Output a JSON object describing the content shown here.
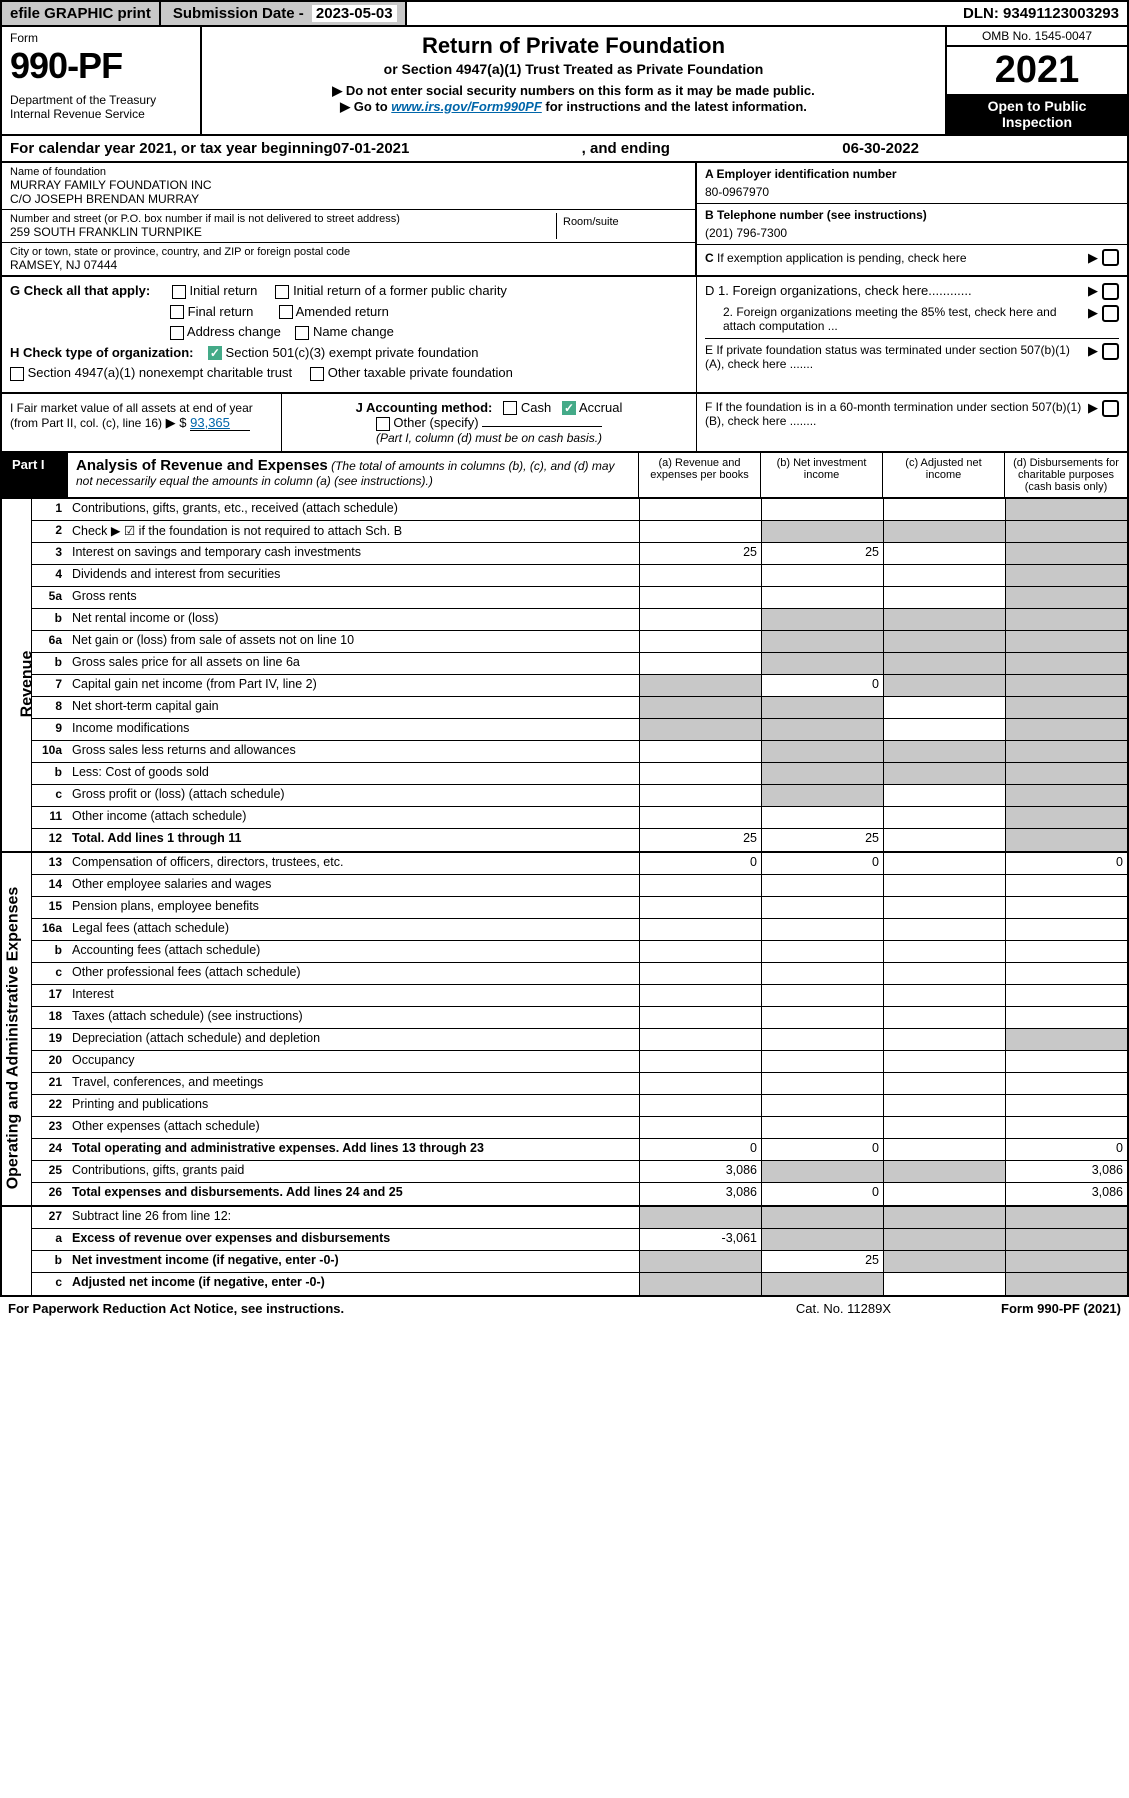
{
  "topbar": {
    "efile": "efile GRAPHIC print",
    "sub_label": "Submission Date - ",
    "sub_date": "2023-05-03",
    "dln": "DLN: 93491123003293"
  },
  "header": {
    "form": "Form",
    "num": "990-PF",
    "dept": "Department of the Treasury\nInternal Revenue Service",
    "title": "Return of Private Foundation",
    "subtitle": "or Section 4947(a)(1) Trust Treated as Private Foundation",
    "note1": "▶ Do not enter social security numbers on this form as it may be made public.",
    "note2_pre": "▶ Go to ",
    "note2_link": "www.irs.gov/Form990PF",
    "note2_post": " for instructions and the latest information.",
    "omb": "OMB No. 1545-0047",
    "year": "2021",
    "open": "Open to Public Inspection"
  },
  "cal": {
    "pre": "For calendar year 2021, or tax year beginning ",
    "begin": "07-01-2021",
    "mid": ", and ending ",
    "end": "06-30-2022"
  },
  "entity": {
    "name_lbl": "Name of foundation",
    "name_val": "MURRAY FAMILY FOUNDATION INC\nC/O JOSEPH BRENDAN MURRAY",
    "addr_lbl": "Number and street (or P.O. box number if mail is not delivered to street address)",
    "addr_val": "259 SOUTH FRANKLIN TURNPIKE",
    "room_lbl": "Room/suite",
    "city_lbl": "City or town, state or province, country, and ZIP or foreign postal code",
    "city_val": "RAMSEY, NJ  07444",
    "a_lbl": "A Employer identification number",
    "a_val": "80-0967970",
    "b_lbl": "B Telephone number (see instructions)",
    "b_val": "(201) 796-7300",
    "c_lbl": "C If exemption application is pending, check here"
  },
  "g": {
    "label": "G Check all that apply:",
    "opts": [
      "Initial return",
      "Initial return of a former public charity",
      "Final return",
      "Amended return",
      "Address change",
      "Name change"
    ]
  },
  "h": {
    "label": "H Check type of organization:",
    "opt1": "Section 501(c)(3) exempt private foundation",
    "opt2": "Section 4947(a)(1) nonexempt charitable trust",
    "opt3": "Other taxable private foundation"
  },
  "d": {
    "d1": "D 1. Foreign organizations, check here............",
    "d2": "2. Foreign organizations meeting the 85% test, check here and attach computation ...",
    "e": "E  If private foundation status was terminated under section 507(b)(1)(A), check here .......",
    "f": "F  If the foundation is in a 60-month termination under section 507(b)(1)(B), check here ........"
  },
  "i": {
    "label": "I Fair market value of all assets at end of year (from Part II, col. (c), line 16)",
    "val": "93,365"
  },
  "j": {
    "label": "J Accounting method:",
    "cash": "Cash",
    "accrual": "Accrual",
    "other": "Other (specify)",
    "note": "(Part I, column (d) must be on cash basis.)"
  },
  "part1": {
    "tag": "Part I",
    "title": "Analysis of Revenue and Expenses",
    "note": " (The total of amounts in columns (b), (c), and (d) may not necessarily equal the amounts in column (a) (see instructions).)",
    "cols": {
      "a": "(a) Revenue and expenses per books",
      "b": "(b) Net investment income",
      "c": "(c) Adjusted net income",
      "d": "(d) Disbursements for charitable purposes (cash basis only)"
    }
  },
  "sections": {
    "rev": "Revenue",
    "exp": "Operating and Administrative Expenses"
  },
  "rows": [
    {
      "n": "1",
      "l": "Contributions, gifts, grants, etc., received (attach schedule)",
      "a": "",
      "b": "",
      "c": "",
      "d": "",
      "gd": true
    },
    {
      "n": "2",
      "l": "Check ▶ ☑ if the foundation is not required to attach Sch. B",
      "a": "",
      "b": "",
      "c": "",
      "d": "",
      "full": true,
      "gb": true,
      "gc": true,
      "gd": true
    },
    {
      "n": "3",
      "l": "Interest on savings and temporary cash investments",
      "a": "25",
      "b": "25",
      "c": "",
      "d": "",
      "gd": true
    },
    {
      "n": "4",
      "l": "Dividends and interest from securities",
      "a": "",
      "b": "",
      "c": "",
      "d": "",
      "gd": true
    },
    {
      "n": "5a",
      "l": "Gross rents",
      "a": "",
      "b": "",
      "c": "",
      "d": "",
      "gd": true
    },
    {
      "n": "b",
      "l": "Net rental income or (loss)",
      "a": "",
      "b": "",
      "c": "",
      "d": "",
      "gb": true,
      "gc": true,
      "gd": true
    },
    {
      "n": "6a",
      "l": "Net gain or (loss) from sale of assets not on line 10",
      "a": "",
      "b": "",
      "c": "",
      "d": "",
      "gb": true,
      "gc": true,
      "gd": true
    },
    {
      "n": "b",
      "l": "Gross sales price for all assets on line 6a",
      "a": "",
      "b": "",
      "c": "",
      "d": "",
      "gb": true,
      "gc": true,
      "gd": true
    },
    {
      "n": "7",
      "l": "Capital gain net income (from Part IV, line 2)",
      "a": "",
      "b": "0",
      "c": "",
      "d": "",
      "ga": true,
      "gc": true,
      "gd": true
    },
    {
      "n": "8",
      "l": "Net short-term capital gain",
      "a": "",
      "b": "",
      "c": "",
      "d": "",
      "ga": true,
      "gb": true,
      "gd": true
    },
    {
      "n": "9",
      "l": "Income modifications",
      "a": "",
      "b": "",
      "c": "",
      "d": "",
      "ga": true,
      "gb": true,
      "gd": true
    },
    {
      "n": "10a",
      "l": "Gross sales less returns and allowances",
      "a": "",
      "b": "",
      "c": "",
      "d": "",
      "gb": true,
      "gc": true,
      "gd": true
    },
    {
      "n": "b",
      "l": "Less: Cost of goods sold",
      "a": "",
      "b": "",
      "c": "",
      "d": "",
      "gb": true,
      "gc": true,
      "gd": true
    },
    {
      "n": "c",
      "l": "Gross profit or (loss) (attach schedule)",
      "a": "",
      "b": "",
      "c": "",
      "d": "",
      "gb": true,
      "gd": true
    },
    {
      "n": "11",
      "l": "Other income (attach schedule)",
      "a": "",
      "b": "",
      "c": "",
      "d": "",
      "gd": true
    },
    {
      "n": "12",
      "l": "Total. Add lines 1 through 11",
      "a": "25",
      "b": "25",
      "c": "",
      "d": "",
      "gd": true,
      "bold": true
    }
  ],
  "rows2": [
    {
      "n": "13",
      "l": "Compensation of officers, directors, trustees, etc.",
      "a": "0",
      "b": "0",
      "c": "",
      "d": "0"
    },
    {
      "n": "14",
      "l": "Other employee salaries and wages",
      "a": "",
      "b": "",
      "c": "",
      "d": ""
    },
    {
      "n": "15",
      "l": "Pension plans, employee benefits",
      "a": "",
      "b": "",
      "c": "",
      "d": ""
    },
    {
      "n": "16a",
      "l": "Legal fees (attach schedule)",
      "a": "",
      "b": "",
      "c": "",
      "d": ""
    },
    {
      "n": "b",
      "l": "Accounting fees (attach schedule)",
      "a": "",
      "b": "",
      "c": "",
      "d": ""
    },
    {
      "n": "c",
      "l": "Other professional fees (attach schedule)",
      "a": "",
      "b": "",
      "c": "",
      "d": ""
    },
    {
      "n": "17",
      "l": "Interest",
      "a": "",
      "b": "",
      "c": "",
      "d": ""
    },
    {
      "n": "18",
      "l": "Taxes (attach schedule) (see instructions)",
      "a": "",
      "b": "",
      "c": "",
      "d": ""
    },
    {
      "n": "19",
      "l": "Depreciation (attach schedule) and depletion",
      "a": "",
      "b": "",
      "c": "",
      "d": "",
      "gd": true
    },
    {
      "n": "20",
      "l": "Occupancy",
      "a": "",
      "b": "",
      "c": "",
      "d": ""
    },
    {
      "n": "21",
      "l": "Travel, conferences, and meetings",
      "a": "",
      "b": "",
      "c": "",
      "d": ""
    },
    {
      "n": "22",
      "l": "Printing and publications",
      "a": "",
      "b": "",
      "c": "",
      "d": ""
    },
    {
      "n": "23",
      "l": "Other expenses (attach schedule)",
      "a": "",
      "b": "",
      "c": "",
      "d": ""
    },
    {
      "n": "24",
      "l": "Total operating and administrative expenses. Add lines 13 through 23",
      "a": "0",
      "b": "0",
      "c": "",
      "d": "0",
      "bold": true
    },
    {
      "n": "25",
      "l": "Contributions, gifts, grants paid",
      "a": "3,086",
      "b": "",
      "c": "",
      "d": "3,086",
      "gb": true,
      "gc": true
    },
    {
      "n": "26",
      "l": "Total expenses and disbursements. Add lines 24 and 25",
      "a": "3,086",
      "b": "0",
      "c": "",
      "d": "3,086",
      "bold": true
    }
  ],
  "rows3": [
    {
      "n": "27",
      "l": "Subtract line 26 from line 12:",
      "a": "",
      "b": "",
      "c": "",
      "d": "",
      "ga": true,
      "gb": true,
      "gc": true,
      "gd": true,
      "bold": false
    },
    {
      "n": "a",
      "l": "Excess of revenue over expenses and disbursements",
      "a": "-3,061",
      "b": "",
      "c": "",
      "d": "",
      "gb": true,
      "gc": true,
      "gd": true,
      "bold": true
    },
    {
      "n": "b",
      "l": "Net investment income (if negative, enter -0-)",
      "a": "",
      "b": "25",
      "c": "",
      "d": "",
      "ga": true,
      "gc": true,
      "gd": true,
      "bold": true
    },
    {
      "n": "c",
      "l": "Adjusted net income (if negative, enter -0-)",
      "a": "",
      "b": "",
      "c": "",
      "d": "",
      "ga": true,
      "gb": true,
      "gd": true,
      "bold": true
    }
  ],
  "foot": {
    "left": "For Paperwork Reduction Act Notice, see instructions.",
    "mid": "Cat. No. 11289X",
    "right": "Form 990-PF (2021)"
  }
}
